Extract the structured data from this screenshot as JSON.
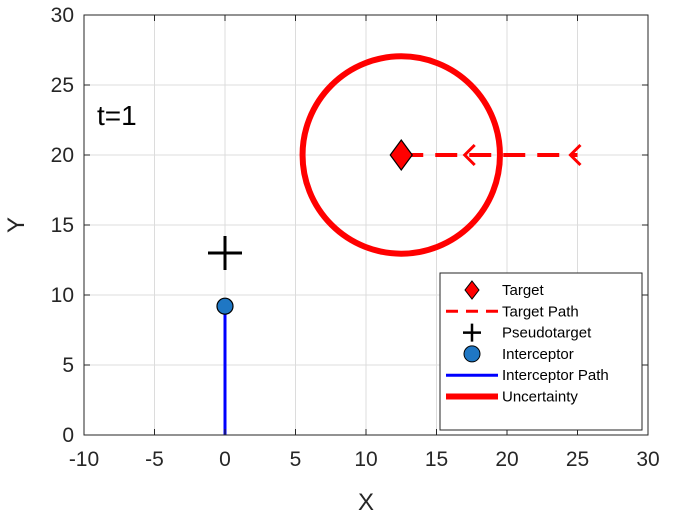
{
  "chart_data": {
    "type": "scatter",
    "xlabel": "X",
    "ylabel": "Y",
    "xlim": [
      -10,
      30
    ],
    "ylim": [
      0,
      30
    ],
    "xticks": [
      -10,
      -5,
      0,
      5,
      10,
      15,
      20,
      25,
      30
    ],
    "yticks": [
      0,
      5,
      10,
      15,
      20,
      25,
      30
    ],
    "grid": true,
    "legend_position": "bottom-right",
    "annotation": "t=1",
    "colors": {
      "target": "#ff0000",
      "interceptor_marker": "#1f77c4",
      "interceptor_path": "#0000ff",
      "pseudotarget": "#000000"
    },
    "series": [
      {
        "name": "Target",
        "marker": "diamond",
        "points": [
          [
            12.5,
            20
          ]
        ]
      },
      {
        "name": "Target Path",
        "style": "dashed",
        "points": [
          [
            12.5,
            20
          ],
          [
            25,
            20
          ]
        ],
        "arrows_at": [
          [
            17,
            20
          ],
          [
            24.5,
            20
          ]
        ]
      },
      {
        "name": "Pseudotarget",
        "marker": "plus",
        "points": [
          [
            0,
            13
          ]
        ]
      },
      {
        "name": "Interceptor",
        "marker": "circle",
        "points": [
          [
            0,
            9.2
          ]
        ]
      },
      {
        "name": "Interceptor Path",
        "style": "solid",
        "points": [
          [
            0,
            0
          ],
          [
            0,
            9.2
          ]
        ]
      },
      {
        "name": "Uncertainty",
        "shape": "circle",
        "center": [
          12.5,
          20
        ],
        "radius": 7
      }
    ]
  }
}
